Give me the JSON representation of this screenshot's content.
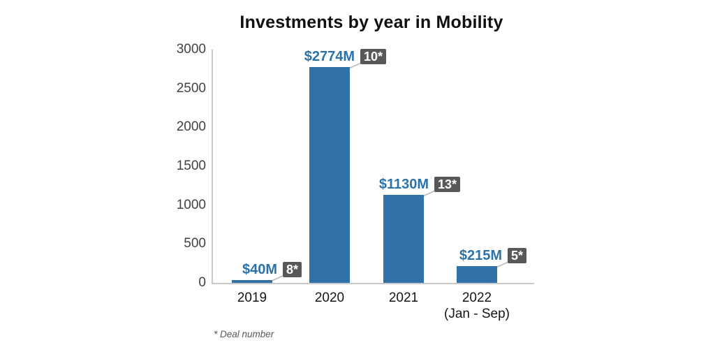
{
  "title": "Investments by year in Mobility",
  "footnote": "* Deal number",
  "colors": {
    "bar": "#3173a9",
    "value_label": "#2b72ab",
    "badge_bg": "#58585a",
    "badge_text": "#ffffff",
    "axis_line": "#c9c9c9",
    "connector_line": "#b5b5b5",
    "y_tick_label": "#414141",
    "x_label": "#151515",
    "footnote_text": "#58585a"
  },
  "chart_data": {
    "type": "bar",
    "title": "Investments by year in Mobility",
    "categories": [
      "2019",
      "2020",
      "2021",
      "2022"
    ],
    "category_sublabels": [
      "",
      "",
      "",
      "(Jan - Sep)"
    ],
    "values": [
      40,
      2774,
      1130,
      215
    ],
    "value_labels": [
      "$40M",
      "$2774M",
      "$1130M",
      "$215M"
    ],
    "deal_counts": [
      "8*",
      "10*",
      "13*",
      "5*"
    ],
    "xlabel": "",
    "ylabel": "",
    "ylim": [
      0,
      3000
    ],
    "yticks": [
      0,
      500,
      1000,
      1500,
      2000,
      2500,
      3000
    ],
    "grid": false,
    "legend": null,
    "footnote": "* Deal number",
    "annotation_meaning": "asterisk badge shows deal number per year"
  }
}
